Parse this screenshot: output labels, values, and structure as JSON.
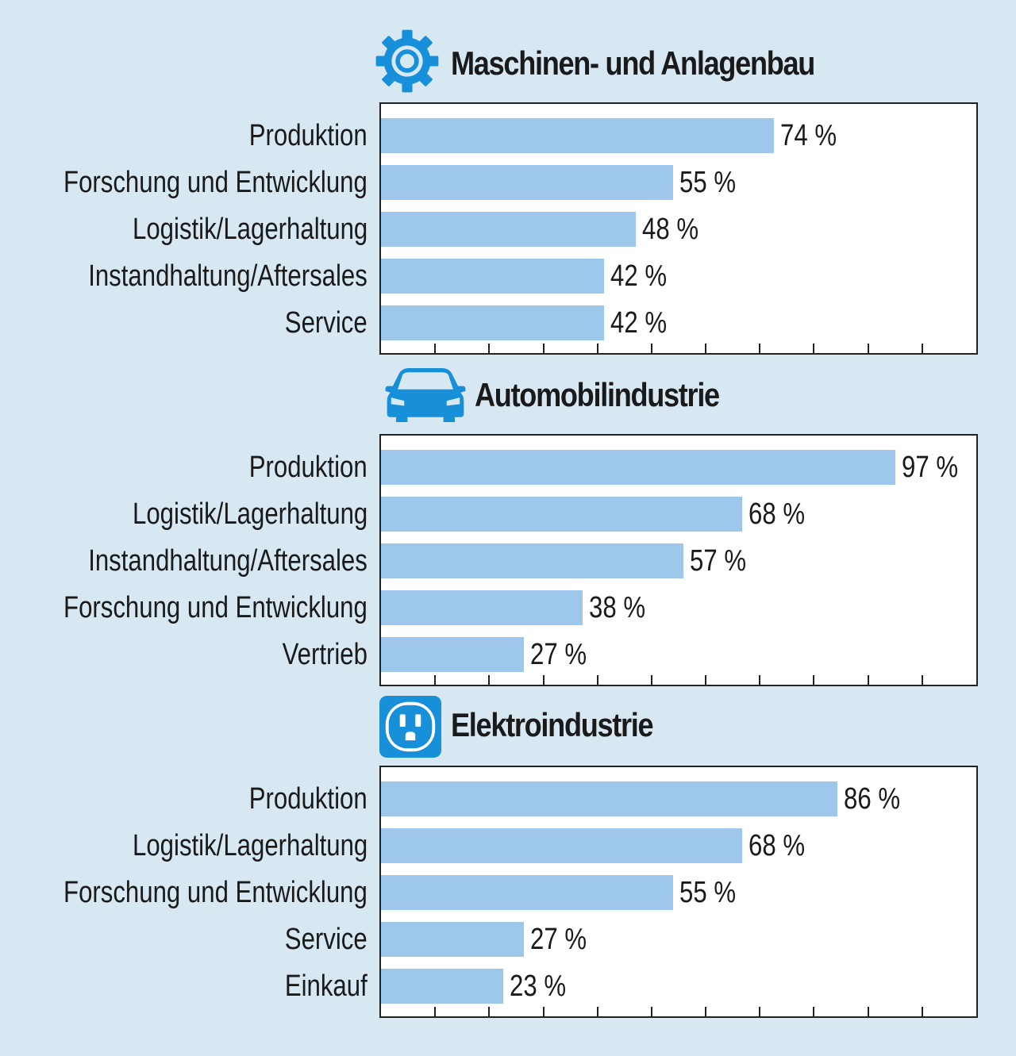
{
  "colors": {
    "background": "#d7e8f3",
    "bar": "#9ec7ec",
    "icon": "#1790d9"
  },
  "chart_data": [
    {
      "type": "bar",
      "orientation": "horizontal",
      "title": "Maschinen- und Anlagenbau",
      "icon": "gear-icon",
      "categories": [
        "Produktion",
        "Forschung und Entwicklung",
        "Logistik/Lagerhaltung",
        "Instandhaltung/Aftersales",
        "Service"
      ],
      "values": [
        74,
        55,
        48,
        42,
        42
      ],
      "value_labels": [
        "74 %",
        "55 %",
        "48 %",
        "42 %",
        "42 %"
      ],
      "xlim": [
        0,
        110
      ],
      "grid": false
    },
    {
      "type": "bar",
      "orientation": "horizontal",
      "title": "Automobilindustrie",
      "icon": "car-icon",
      "categories": [
        "Produktion",
        "Logistik/Lagerhaltung",
        "Instandhaltung/Aftersales",
        "Forschung und Entwicklung",
        "Vertrieb"
      ],
      "values": [
        97,
        68,
        57,
        38,
        27
      ],
      "value_labels": [
        "97 %",
        "68 %",
        "57 %",
        "38 %",
        "27 %"
      ],
      "xlim": [
        0,
        110
      ],
      "grid": false
    },
    {
      "type": "bar",
      "orientation": "horizontal",
      "title": "Elektroindustrie",
      "icon": "power-outlet-icon",
      "categories": [
        "Produktion",
        "Logistik/Lagerhaltung",
        "Forschung und Entwicklung",
        "Service",
        "Einkauf"
      ],
      "values": [
        86,
        68,
        55,
        27,
        23
      ],
      "value_labels": [
        "86 %",
        "68 %",
        "55 %",
        "27 %",
        "23 %"
      ],
      "xlim": [
        0,
        110
      ],
      "grid": false
    }
  ]
}
